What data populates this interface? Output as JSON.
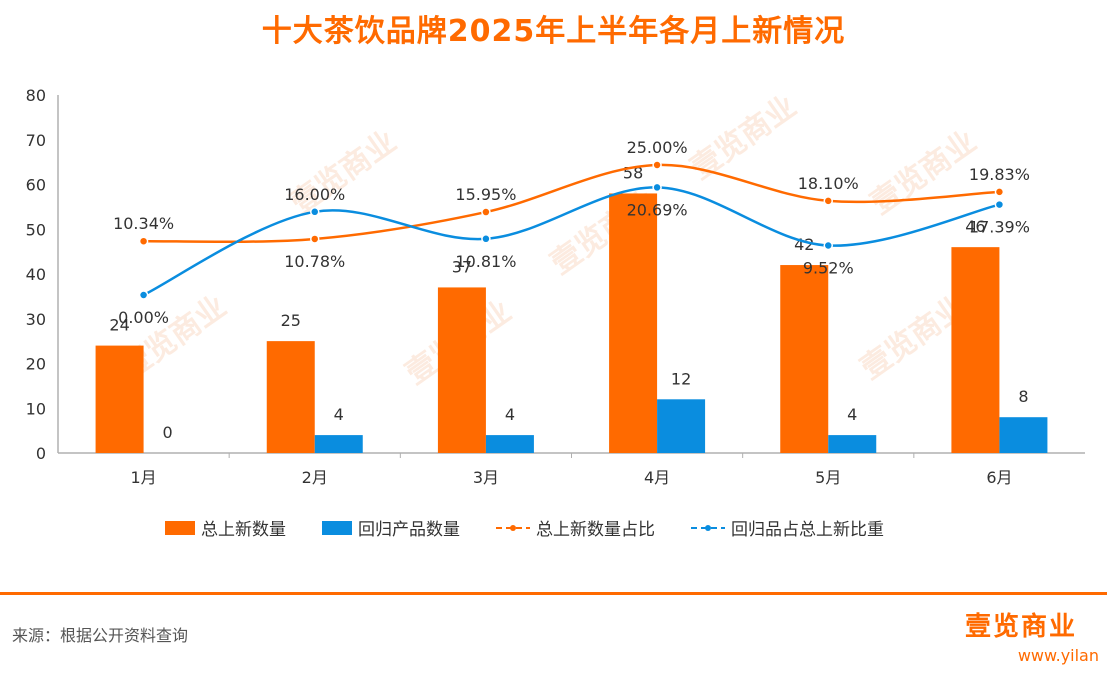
{
  "title": "十大茶饮品牌2025年上半年各月上新情况",
  "legend": {
    "total_label": "总上新数量",
    "return_label": "回归产品数量",
    "total_ratio_label": "总上新数量占比",
    "return_ratio_label": "回归品占总上新比重"
  },
  "source": "来源：根据公开资料查询",
  "brand": "壹览商业",
  "site": "www.yilan",
  "watermark": "壹览商业",
  "colors": {
    "orange": "#ff6a00",
    "blue": "#0a8ddf",
    "axis": "#b0b0b0"
  },
  "chart_data": {
    "type": "bar",
    "categories": [
      "1月",
      "2月",
      "3月",
      "4月",
      "5月",
      "6月"
    ],
    "ylim": [
      0,
      80
    ],
    "yticks": [
      0,
      10,
      20,
      30,
      40,
      50,
      60,
      70,
      80
    ],
    "series": [
      {
        "name": "总上新数量",
        "kind": "bar",
        "color": "#ff6a00",
        "values": [
          24,
          25,
          37,
          58,
          42,
          46
        ]
      },
      {
        "name": "回归产品数量",
        "kind": "bar",
        "color": "#0a8ddf",
        "values": [
          0,
          4,
          4,
          12,
          4,
          8
        ]
      },
      {
        "name": "总上新数量占比",
        "kind": "line",
        "color": "#ff6a00",
        "values": [
          10.34,
          10.78,
          15.95,
          25.0,
          18.1,
          19.83
        ],
        "labels": [
          "10.34%",
          "10.78%",
          "15.95%",
          "25.00%",
          "18.10%",
          "19.83%"
        ]
      },
      {
        "name": "回归品占总上新比重",
        "kind": "line",
        "color": "#0a8ddf",
        "values": [
          0.0,
          16.0,
          10.81,
          20.69,
          9.52,
          17.39
        ],
        "labels": [
          "0.00%",
          "16.00%",
          "10.81%",
          "20.69%",
          "9.52%",
          "17.39%"
        ]
      }
    ]
  }
}
